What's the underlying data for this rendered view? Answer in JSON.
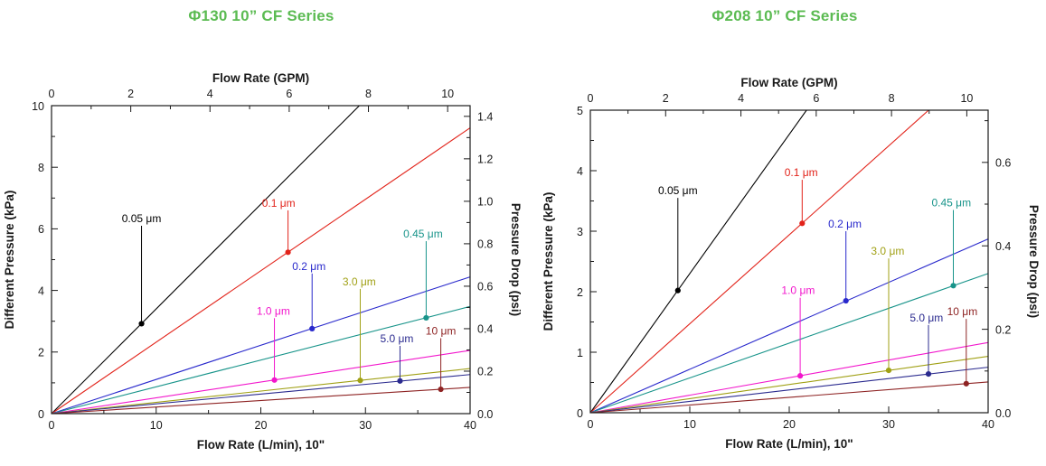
{
  "page": {
    "background": "#ffffff",
    "accent_green": "#5bbb52"
  },
  "chart_data": [
    {
      "type": "line",
      "title": "Φ130 10”  CF Series",
      "title_color": "#5bbb52",
      "axes": {
        "bottom": {
          "label": "Flow Rate (L/min), 10\"",
          "range": [
            0,
            40
          ],
          "major_ticks": [
            0,
            10,
            20,
            30,
            40
          ],
          "minor_step": 5
        },
        "top": {
          "label": "Flow Rate (GPM)",
          "major_ticks": [
            0,
            2,
            4,
            6,
            8,
            10
          ],
          "minor_step": 1,
          "lpm_per_gpm": 3.7854
        },
        "left": {
          "label": "Different Pressure (kPa)",
          "range": [
            0,
            10
          ],
          "major_ticks": [
            0,
            2,
            4,
            6,
            8,
            10
          ],
          "minor_step": 1
        },
        "right": {
          "label": "Pressure Drop (psi)",
          "major_ticks": [
            "0.0",
            "0.2",
            "0.4",
            "0.6",
            "0.8",
            "1.0",
            "1.2",
            "1.4"
          ],
          "minor_step": 0.1,
          "kpa_per_psi": 6.895
        }
      },
      "series": [
        {
          "name": "0.05 μm",
          "color": "#000000",
          "slope_kpa_per_lpm": 0.34,
          "marker": {
            "x_lpm": 8.6,
            "y_kpa": 2.92
          },
          "label": {
            "x_lpm": 8.6,
            "y_kpa": 6.1
          }
        },
        {
          "name": "0.1 μm",
          "color": "#e2231a",
          "slope_kpa_per_lpm": 0.232,
          "marker": {
            "x_lpm": 22.6,
            "y_kpa": 5.24
          },
          "label": {
            "x_lpm": 21.7,
            "y_kpa": 6.6
          }
        },
        {
          "name": "0.2 μm",
          "color": "#2929cc",
          "slope_kpa_per_lpm": 0.111,
          "marker": {
            "x_lpm": 24.9,
            "y_kpa": 2.76
          },
          "label": {
            "x_lpm": 24.6,
            "y_kpa": 4.55
          }
        },
        {
          "name": "0.45 μm",
          "color": "#18948a",
          "slope_kpa_per_lpm": 0.087,
          "marker": {
            "x_lpm": 35.8,
            "y_kpa": 3.11
          },
          "label": {
            "x_lpm": 35.5,
            "y_kpa": 5.6
          }
        },
        {
          "name": "1.0 μm",
          "color": "#f216cc",
          "slope_kpa_per_lpm": 0.0513,
          "marker": {
            "x_lpm": 21.3,
            "y_kpa": 1.09
          },
          "label": {
            "x_lpm": 21.2,
            "y_kpa": 3.1
          }
        },
        {
          "name": "3.0 μm",
          "color": "#a0a014",
          "slope_kpa_per_lpm": 0.0366,
          "marker": {
            "x_lpm": 29.5,
            "y_kpa": 1.08
          },
          "label": {
            "x_lpm": 29.4,
            "y_kpa": 4.05
          }
        },
        {
          "name": "5.0 μm",
          "color": "#2b2b8f",
          "slope_kpa_per_lpm": 0.0317,
          "marker": {
            "x_lpm": 33.3,
            "y_kpa": 1.06
          },
          "label": {
            "x_lpm": 33.0,
            "y_kpa": 2.2
          }
        },
        {
          "name": "10 μm",
          "color": "#8e2323",
          "slope_kpa_per_lpm": 0.0213,
          "marker": {
            "x_lpm": 37.2,
            "y_kpa": 0.79
          },
          "label": {
            "x_lpm": 37.2,
            "y_kpa": 2.45
          }
        }
      ]
    },
    {
      "type": "line",
      "title": "Φ208 10”  CF Series",
      "title_color": "#5bbb52",
      "axes": {
        "bottom": {
          "label": "Flow Rate (L/min), 10\"",
          "range": [
            0,
            40
          ],
          "major_ticks": [
            0,
            10,
            20,
            30,
            40
          ],
          "minor_step": 5
        },
        "top": {
          "label": "Flow Rate (GPM)",
          "major_ticks": [
            0,
            2,
            4,
            6,
            8,
            10
          ],
          "minor_step": 1,
          "lpm_per_gpm": 3.7854
        },
        "left": {
          "label": "Different Pressure (kPa)",
          "range": [
            0,
            5
          ],
          "major_ticks": [
            0,
            1,
            2,
            3,
            4,
            5
          ],
          "minor_step": 0.5
        },
        "right": {
          "label": "Pressure Drop (psi)",
          "major_ticks": [
            "0.0",
            "0.2",
            "0.4",
            "0.6"
          ],
          "minor_step": 0.1,
          "kpa_per_psi": 6.895
        }
      },
      "series": [
        {
          "name": "0.05 μm",
          "color": "#000000",
          "slope_kpa_per_lpm": 0.23,
          "marker": {
            "x_lpm": 8.8,
            "y_kpa": 2.02
          },
          "label": {
            "x_lpm": 8.8,
            "y_kpa": 3.55
          }
        },
        {
          "name": "0.1 μm",
          "color": "#e2231a",
          "slope_kpa_per_lpm": 0.147,
          "marker": {
            "x_lpm": 21.3,
            "y_kpa": 3.13
          },
          "label": {
            "x_lpm": 21.2,
            "y_kpa": 3.85
          }
        },
        {
          "name": "0.2 μm",
          "color": "#2929cc",
          "slope_kpa_per_lpm": 0.0718,
          "marker": {
            "x_lpm": 25.7,
            "y_kpa": 1.85
          },
          "label": {
            "x_lpm": 25.6,
            "y_kpa": 3.0
          }
        },
        {
          "name": "0.45 μm",
          "color": "#18948a",
          "slope_kpa_per_lpm": 0.0575,
          "marker": {
            "x_lpm": 36.5,
            "y_kpa": 2.1
          },
          "label": {
            "x_lpm": 36.3,
            "y_kpa": 3.35
          }
        },
        {
          "name": "1.0 μm",
          "color": "#f216cc",
          "slope_kpa_per_lpm": 0.029,
          "marker": {
            "x_lpm": 21.1,
            "y_kpa": 0.61
          },
          "label": {
            "x_lpm": 20.9,
            "y_kpa": 1.9
          }
        },
        {
          "name": "3.0 μm",
          "color": "#a0a014",
          "slope_kpa_per_lpm": 0.0233,
          "marker": {
            "x_lpm": 30.0,
            "y_kpa": 0.7
          },
          "label": {
            "x_lpm": 29.9,
            "y_kpa": 2.55
          }
        },
        {
          "name": "5.0 μm",
          "color": "#2b2b8f",
          "slope_kpa_per_lpm": 0.0188,
          "marker": {
            "x_lpm": 34.0,
            "y_kpa": 0.64
          },
          "label": {
            "x_lpm": 33.8,
            "y_kpa": 1.45
          }
        },
        {
          "name": "10 μm",
          "color": "#8e2323",
          "slope_kpa_per_lpm": 0.0127,
          "marker": {
            "x_lpm": 37.8,
            "y_kpa": 0.48
          },
          "label": {
            "x_lpm": 37.4,
            "y_kpa": 1.55
          }
        }
      ]
    }
  ]
}
